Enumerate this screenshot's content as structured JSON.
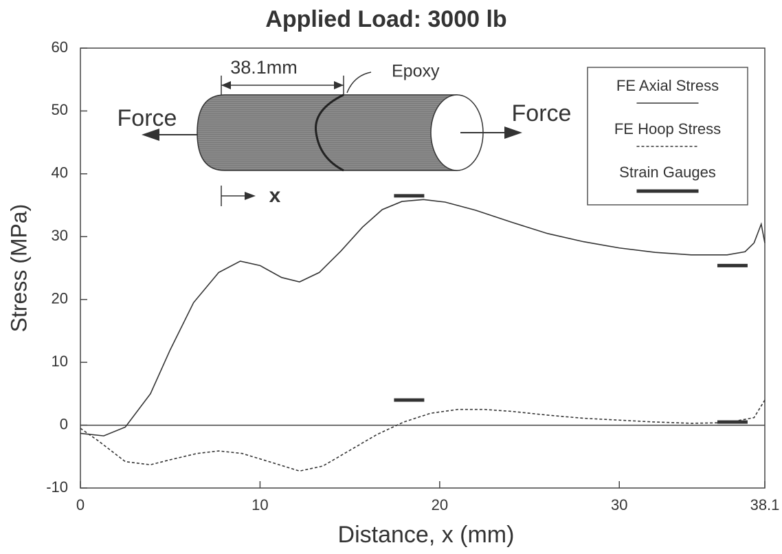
{
  "chart_data": {
    "type": "line",
    "title": "Applied Load: 3000 lb",
    "xlabel": "Distance, x (mm)",
    "ylabel": "Stress (MPa)",
    "xlim": [
      0,
      38.1
    ],
    "ylim": [
      -10,
      60
    ],
    "xticks": [
      0,
      10,
      20,
      30,
      38.1
    ],
    "yticks": [
      -10,
      0,
      10,
      20,
      30,
      40,
      50,
      60
    ],
    "legend": "upper right",
    "annotations": [
      "38.1mm",
      "Epoxy",
      "Force",
      "Force",
      "x"
    ],
    "series": [
      {
        "name": "FE Axial Stress",
        "color": "#333333",
        "style": "solid",
        "x": [
          0,
          1.3,
          2.5,
          3.9,
          5,
          6.3,
          7.7,
          8.9,
          10,
          11.2,
          12.2,
          13.3,
          14.5,
          15.7,
          16.8,
          17.9,
          19.1,
          20.3,
          22,
          24,
          26,
          28,
          30,
          32,
          34,
          36,
          37,
          37.5,
          37.9,
          38.1
        ],
        "values": [
          -1.3,
          -1.7,
          -0.3,
          5,
          12,
          19.5,
          24.3,
          26.1,
          25.4,
          23.5,
          22.8,
          24.3,
          27.7,
          31.5,
          34.3,
          35.6,
          35.9,
          35.5,
          34.2,
          32.3,
          30.5,
          29.2,
          28.2,
          27.5,
          27.1,
          27.1,
          27.6,
          29,
          32,
          29
        ]
      },
      {
        "name": "FE Hoop Stress",
        "color": "#333333",
        "style": "dashed",
        "x": [
          0,
          1,
          2.5,
          3.9,
          5,
          6.5,
          7.7,
          9,
          10.5,
          12.2,
          13.5,
          15,
          16.5,
          18,
          19.5,
          21,
          22.5,
          24,
          26,
          28,
          30,
          32,
          34,
          36,
          37.5,
          38.1
        ],
        "values": [
          -0.5,
          -2.5,
          -5.8,
          -6.3,
          -5.5,
          -4.5,
          -4.1,
          -4.5,
          -5.8,
          -7.3,
          -6.5,
          -4,
          -1.5,
          0.5,
          1.9,
          2.5,
          2.5,
          2.2,
          1.6,
          1.1,
          0.8,
          0.5,
          0.3,
          0.4,
          1.2,
          4
        ]
      },
      {
        "name": "Strain Gauges",
        "color": "#333333",
        "style": "dash-marker",
        "x": [
          18.3,
          18.3,
          36.3,
          36.3
        ],
        "values": [
          36.5,
          4,
          25.4,
          0.5
        ]
      }
    ]
  }
}
